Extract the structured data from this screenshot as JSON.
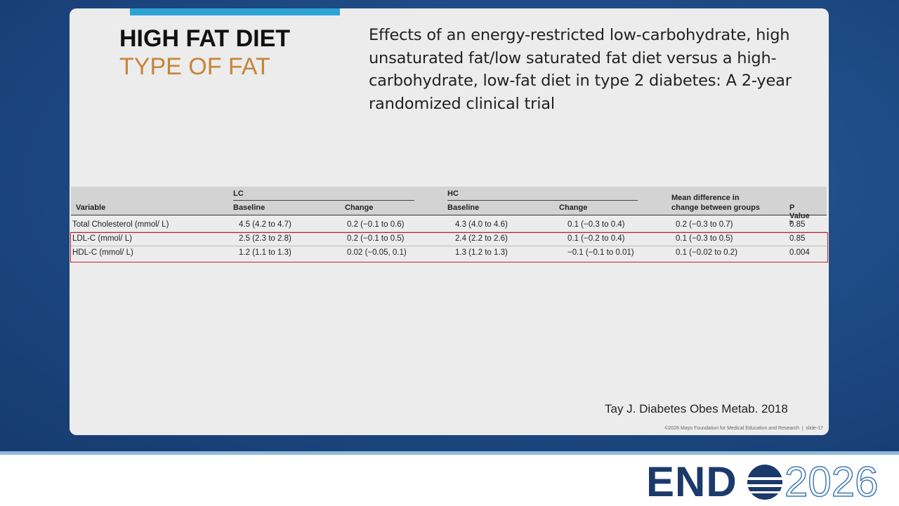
{
  "slide": {
    "title": "HIGH FAT DIET",
    "subtitle": "TYPE OF FAT",
    "heading": "Effects of an energy-restricted low-carbohydrate, high unsaturated fat/low saturated fat diet versus a high-carbohydrate, low-fat diet in type 2 diabetes: A 2-year randomized clinical trial",
    "table": {
      "group_headers": [
        "LC",
        "HC",
        "Mean difference in change between groups"
      ],
      "columns": [
        "Variable",
        "Baseline",
        "Change",
        "Baseline",
        "Change",
        "P Value"
      ],
      "p_value_note": "b",
      "rows": [
        [
          "Total Cholesterol (mmol/ L)",
          "4.5 (4.2 to 4.7)",
          "0.2 (−0.1 to 0.6)",
          "4.3 (4.0 to 4.6)",
          "0.1 (−0.3 to 0.4)",
          "0.2 (−0.3 to 0.7)",
          "0.85"
        ],
        [
          "LDL-C (mmol/ L)",
          "2.5 (2.3 to 2.8)",
          "0.2 (−0.1 to 0.5)",
          "2.4 (2.2 to 2.6)",
          "0.1 (−0.2 to 0.4)",
          "0.1 (−0.3 to 0.5)",
          "0.85"
        ],
        [
          "HDL-C (mmol/ L)",
          "1.2 (1.1 to 1.3)",
          "0.02 (−0.05, 0.1)",
          "1.3 (1.2 to 1.3)",
          "−0.1 (−0.1 to 0.01)",
          "0.1 (−0.02 to 0.2)",
          "0.004"
        ]
      ]
    },
    "citation": "Tay J. Diabetes Obes Metab. 2018",
    "footer": "©2026 Mayo Foundation for Medical Education and Research  |  slide-17"
  },
  "logo": {
    "left": "END",
    "right": "2026"
  }
}
